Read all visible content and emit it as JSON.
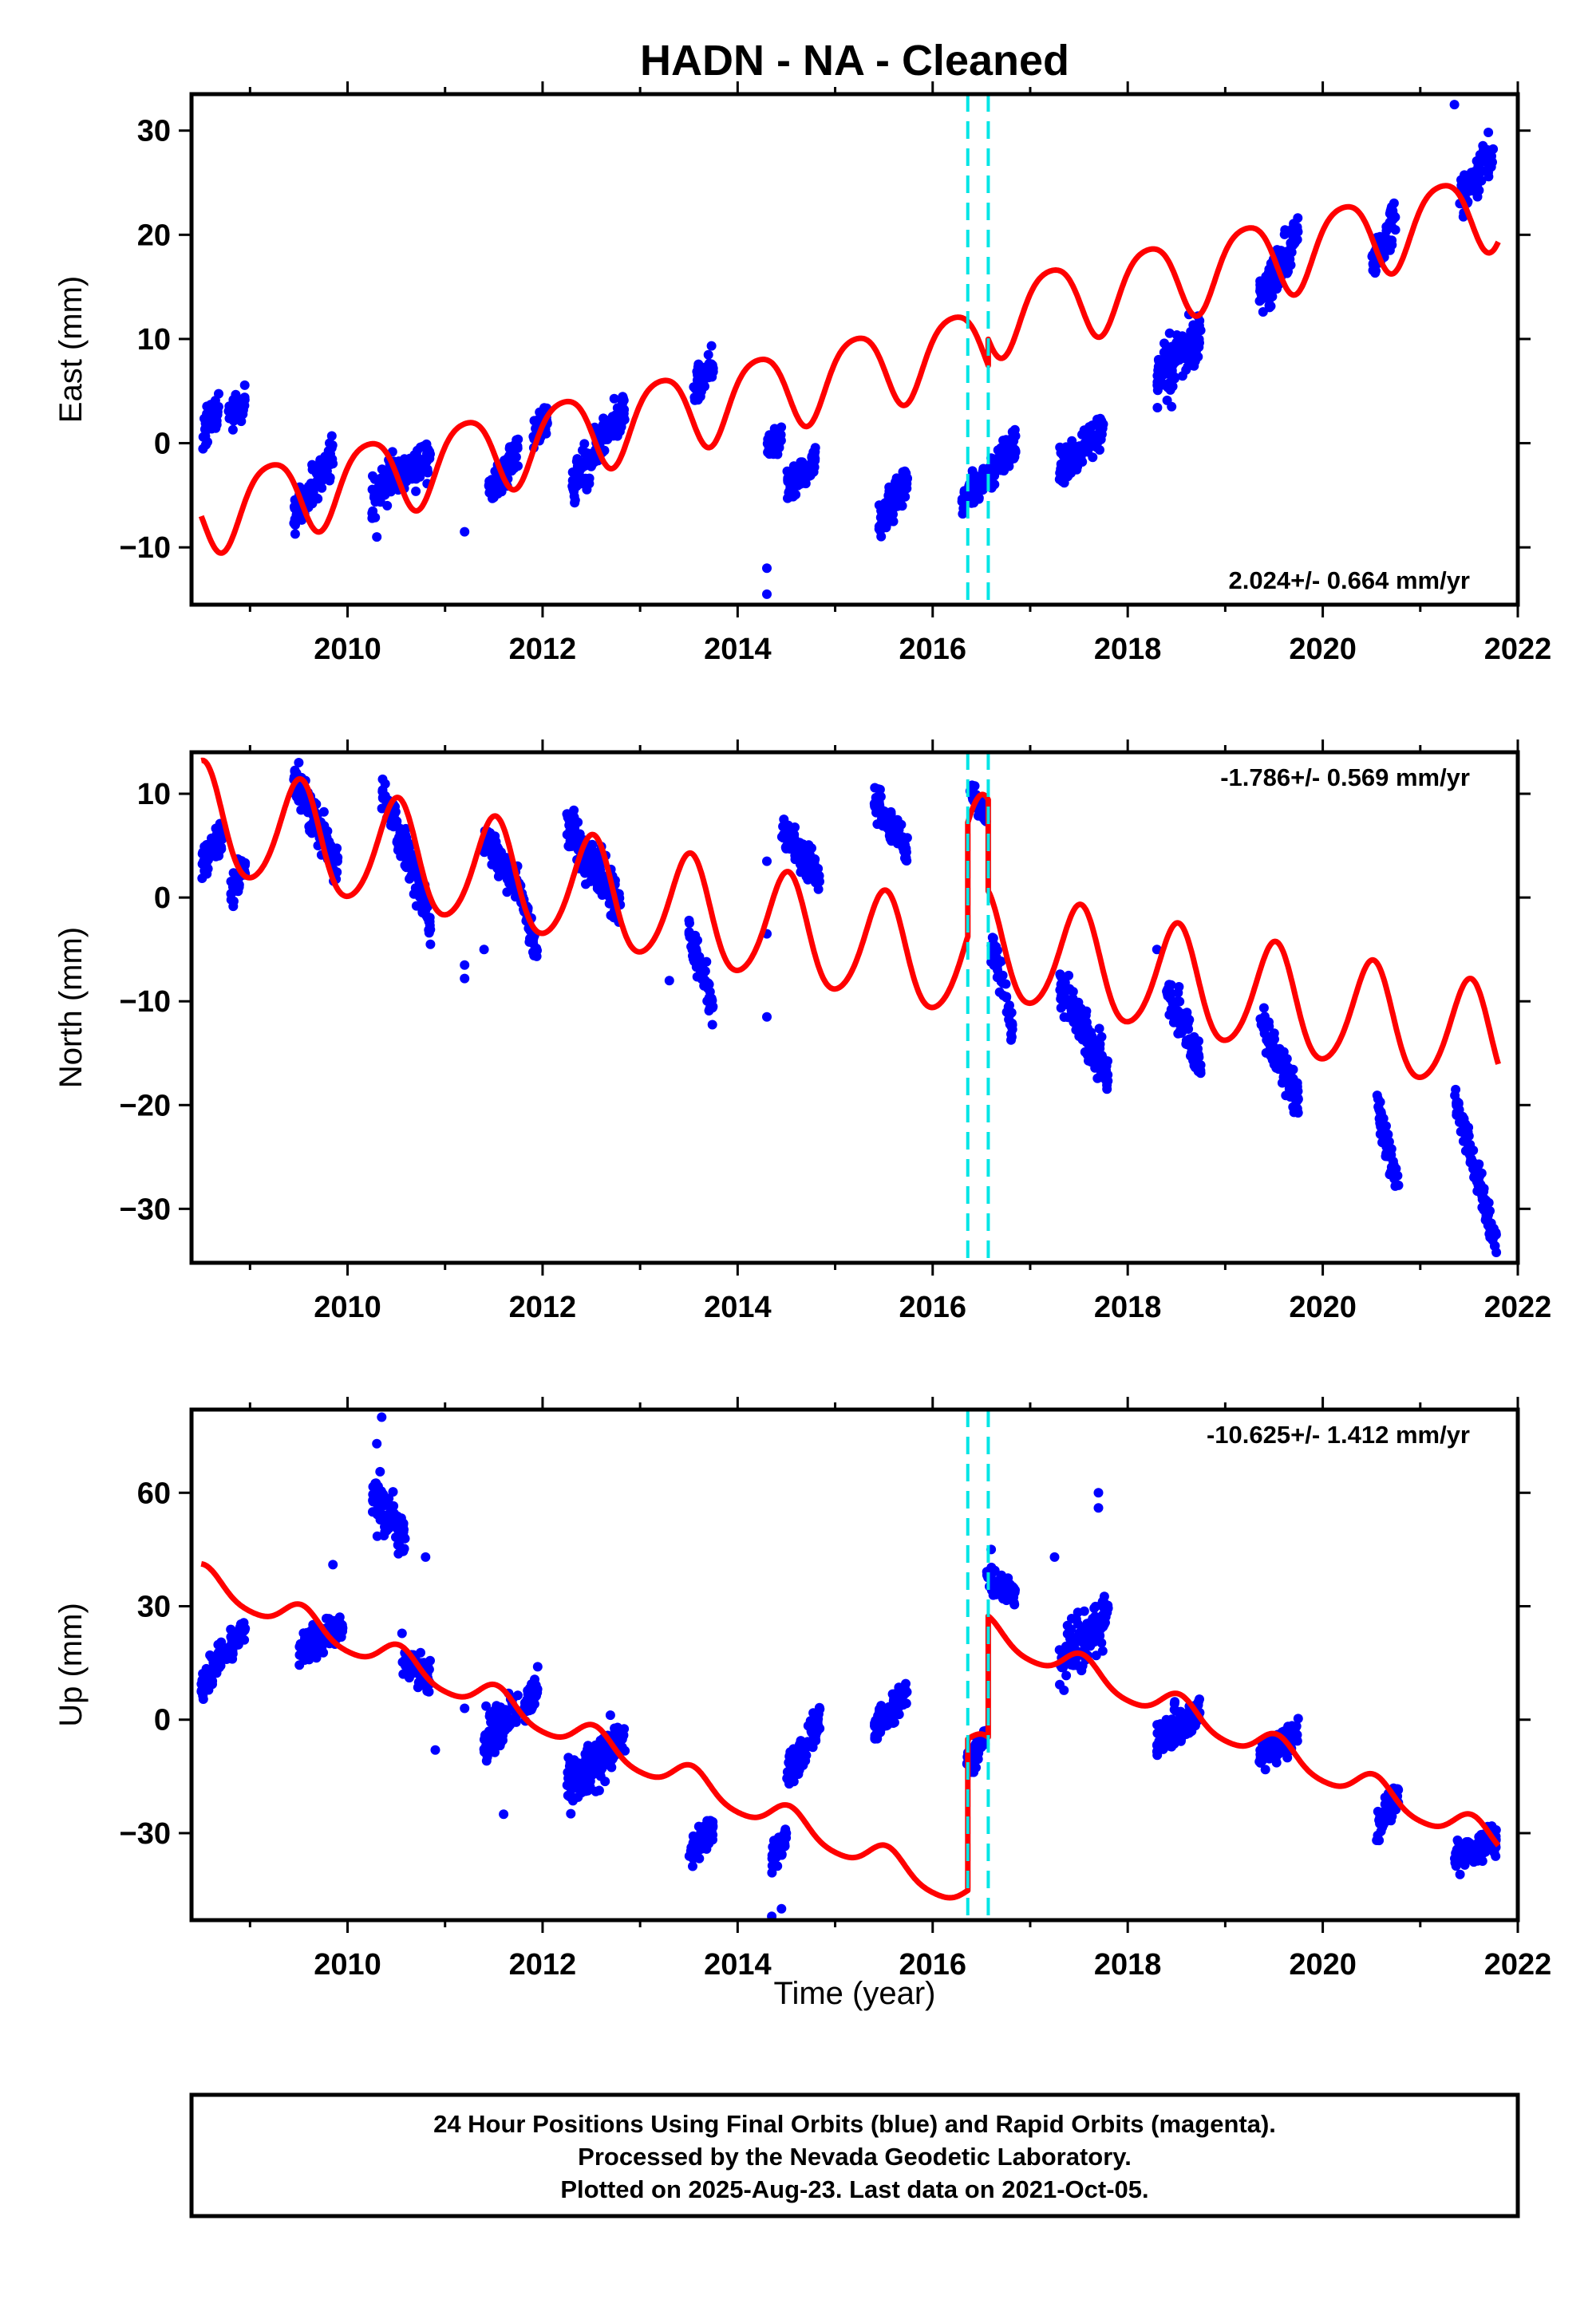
{
  "title": "HADN  - NA - Cleaned",
  "xlabel": "Time (year)",
  "footer": {
    "lines": [
      "24 Hour Positions Using Final Orbits (blue) and Rapid Orbits (magenta).",
      "Processed by the Nevada Geodetic Laboratory.",
      "Plotted on 2025-Aug-23. Last data on 2021-Oct-05."
    ]
  },
  "colors": {
    "data": "#0000ff",
    "model": "#ff0000",
    "offset": "#00e5e5",
    "frame": "#000000"
  },
  "offsets": [
    2016.36,
    2016.57
  ],
  "chart_data": [
    {
      "type": "scatter",
      "component": "east",
      "ylabel": "East (mm)",
      "rate_text": "2.024+/- 0.664 mm/yr",
      "rate_position": "bottom-right",
      "xlim": [
        2008.4,
        2022.0
      ],
      "ylim": [
        -15.5,
        33.5
      ],
      "xticks": [
        2010,
        2012,
        2014,
        2016,
        2018,
        2020,
        2022
      ],
      "yticks": [
        -10,
        0,
        10,
        20,
        30
      ],
      "yticklabels": [
        "−10",
        "0",
        "10",
        "20",
        "30"
      ],
      "series": [
        {
          "kind": "points",
          "color": "#0000ff",
          "clusters": [
            {
              "x0": 2008.5,
              "x1": 2008.68,
              "y0": 0.5,
              "y1": 3.5,
              "s": 1.3
            },
            {
              "x0": 2008.78,
              "x1": 2008.95,
              "y0": 2.5,
              "y1": 4.0,
              "s": 1.0
            },
            {
              "x0": 2009.45,
              "x1": 2009.85,
              "y0": -7.0,
              "y1": -1.0,
              "s": 1.3
            },
            {
              "x0": 2010.25,
              "x1": 2010.85,
              "y0": -5.0,
              "y1": -1.0,
              "s": 1.5
            },
            {
              "x0": 2011.45,
              "x1": 2011.75,
              "y0": -4.5,
              "y1": -1.0,
              "s": 1.2
            },
            {
              "x0": 2011.9,
              "x1": 2012.05,
              "y0": 0.5,
              "y1": 2.5,
              "s": 1.0
            },
            {
              "x0": 2012.3,
              "x1": 2012.85,
              "y0": -4.5,
              "y1": 3.5,
              "s": 1.5
            },
            {
              "x0": 2013.55,
              "x1": 2013.75,
              "y0": 5.0,
              "y1": 8.0,
              "s": 1.2
            },
            {
              "x0": 2014.3,
              "x1": 2014.45,
              "y0": -0.5,
              "y1": 0.5,
              "s": 0.8
            },
            {
              "x0": 2014.5,
              "x1": 2014.8,
              "y0": -4.5,
              "y1": -1.5,
              "s": 1.0
            },
            {
              "x0": 2015.45,
              "x1": 2015.75,
              "y0": -7.5,
              "y1": -3.5,
              "s": 1.2
            },
            {
              "x0": 2016.3,
              "x1": 2016.85,
              "y0": -5.5,
              "y1": 0.0,
              "s": 1.3
            },
            {
              "x0": 2017.3,
              "x1": 2017.75,
              "y0": -2.5,
              "y1": 1.5,
              "s": 1.3
            },
            {
              "x0": 2018.3,
              "x1": 2018.75,
              "y0": 6.0,
              "y1": 10.5,
              "s": 1.6
            },
            {
              "x0": 2019.35,
              "x1": 2019.75,
              "y0": 14.0,
              "y1": 20.0,
              "s": 1.5
            },
            {
              "x0": 2020.5,
              "x1": 2020.75,
              "y0": 17.0,
              "y1": 22.0,
              "s": 1.4
            },
            {
              "x0": 2021.4,
              "x1": 2021.75,
              "y0": 23.0,
              "y1": 28.0,
              "s": 1.5
            }
          ],
          "singles": [
            [
              2014.3,
              -12.0
            ],
            [
              2014.3,
              -14.5
            ],
            [
              2011.2,
              -8.5
            ],
            [
              2021.35,
              32.5
            ],
            [
              2010.3,
              -9.0
            ],
            [
              2018.45,
              3.5
            ]
          ]
        },
        {
          "kind": "model",
          "color": "#ff0000",
          "segments": [
            [
              2008.5,
              2016.36
            ],
            [
              2016.36,
              2016.57
            ],
            [
              2016.57,
              2021.8
            ]
          ],
          "base_year": 2008.5,
          "intercept": -6.7,
          "rate": 2.024,
          "annual_sin": -3.6,
          "annual_cos": -0.8,
          "semi_sin": -0.3,
          "semi_cos": 0.5,
          "segment_offsets": [
            0.0,
            0.0,
            2.5
          ]
        }
      ]
    },
    {
      "type": "scatter",
      "component": "north",
      "ylabel": "North (mm)",
      "rate_text": "-1.786+/- 0.569 mm/yr",
      "rate_position": "top-right",
      "xlim": [
        2008.4,
        2022.0
      ],
      "ylim": [
        -35.2,
        14.0
      ],
      "xticks": [
        2010,
        2012,
        2014,
        2016,
        2018,
        2020,
        2022
      ],
      "yticks": [
        -30,
        -20,
        -10,
        0,
        10
      ],
      "yticklabels": [
        "−30",
        "−20",
        "−10",
        "0",
        "10"
      ],
      "series": [
        {
          "kind": "points",
          "color": "#0000ff",
          "clusters": [
            {
              "x0": 2008.5,
              "x1": 2008.72,
              "y0": 3.0,
              "y1": 6.0,
              "s": 1.2
            },
            {
              "x0": 2008.8,
              "x1": 2008.95,
              "y0": 0.5,
              "y1": 3.0,
              "s": 1.0
            },
            {
              "x0": 2009.45,
              "x1": 2009.9,
              "y0": 11.5,
              "y1": 3.0,
              "s": 1.3
            },
            {
              "x0": 2010.35,
              "x1": 2010.85,
              "y0": 10.5,
              "y1": -2.0,
              "s": 1.5
            },
            {
              "x0": 2011.4,
              "x1": 2011.75,
              "y0": 6.0,
              "y1": 1.0,
              "s": 1.2
            },
            {
              "x0": 2011.75,
              "x1": 2011.95,
              "y0": 1.0,
              "y1": -5.5,
              "s": 1.0
            },
            {
              "x0": 2012.25,
              "x1": 2012.8,
              "y0": 7.0,
              "y1": -1.0,
              "s": 1.6
            },
            {
              "x0": 2013.5,
              "x1": 2013.75,
              "y0": -3.0,
              "y1": -11.0,
              "s": 1.3
            },
            {
              "x0": 2014.45,
              "x1": 2014.85,
              "y0": 6.5,
              "y1": 2.0,
              "s": 1.2
            },
            {
              "x0": 2015.4,
              "x1": 2015.75,
              "y0": 9.5,
              "y1": 4.0,
              "s": 1.2
            },
            {
              "x0": 2016.38,
              "x1": 2016.55,
              "y0": 10.5,
              "y1": 8.0,
              "s": 1.0
            },
            {
              "x0": 2016.6,
              "x1": 2016.82,
              "y0": -4.5,
              "y1": -12.5,
              "s": 1.2
            },
            {
              "x0": 2017.3,
              "x1": 2017.8,
              "y0": -8.5,
              "y1": -17.0,
              "s": 1.5
            },
            {
              "x0": 2018.4,
              "x1": 2018.75,
              "y0": -9.0,
              "y1": -16.0,
              "s": 1.4
            },
            {
              "x0": 2019.35,
              "x1": 2019.75,
              "y0": -11.5,
              "y1": -19.5,
              "s": 1.3
            },
            {
              "x0": 2020.55,
              "x1": 2020.78,
              "y0": -20.0,
              "y1": -27.5,
              "s": 1.2
            },
            {
              "x0": 2021.35,
              "x1": 2021.78,
              "y0": -19.0,
              "y1": -33.5,
              "s": 1.2
            }
          ],
          "singles": [
            [
              2010.85,
              -4.5
            ],
            [
              2011.2,
              -6.5
            ],
            [
              2011.2,
              -7.8
            ],
            [
              2013.3,
              -8.0
            ],
            [
              2014.3,
              -3.5
            ],
            [
              2014.3,
              -11.5
            ],
            [
              2014.3,
              3.5
            ],
            [
              2011.4,
              -5.0
            ],
            [
              2018.3,
              -5.0
            ],
            [
              2009.5,
              13.0
            ],
            [
              2021.78,
              -34.2
            ]
          ]
        },
        {
          "kind": "model",
          "color": "#ff0000",
          "segments": [
            [
              2008.5,
              2016.36
            ],
            [
              2016.36,
              2016.57
            ],
            [
              2016.57,
              2021.8
            ]
          ],
          "base_year": 2008.5,
          "intercept": 7.5,
          "rate": -1.786,
          "annual_sin": 0.2,
          "annual_cos": 5.2,
          "semi_sin": 0.3,
          "semi_cos": 0.5,
          "segment_offsets": [
            0.0,
            11.0,
            2.2
          ]
        }
      ]
    },
    {
      "type": "scatter",
      "component": "up",
      "ylabel": "Up (mm)",
      "rate_text": "-10.625+/- 1.412 mm/yr",
      "rate_position": "top-right",
      "xlim": [
        2008.4,
        2022.0
      ],
      "ylim": [
        -53.0,
        82.0
      ],
      "xticks": [
        2010,
        2012,
        2014,
        2016,
        2018,
        2020,
        2022
      ],
      "yticks": [
        -30,
        0,
        30,
        60
      ],
      "yticklabels": [
        "−30",
        "0",
        "30",
        "60"
      ],
      "series": [
        {
          "kind": "points",
          "color": "#0000ff",
          "clusters": [
            {
              "x0": 2008.5,
              "x1": 2008.72,
              "y0": 8.0,
              "y1": 18.0,
              "s": 3.0
            },
            {
              "x0": 2008.75,
              "x1": 2008.95,
              "y0": 18.0,
              "y1": 24.0,
              "s": 2.5
            },
            {
              "x0": 2009.5,
              "x1": 2009.95,
              "y0": 18.0,
              "y1": 25.0,
              "s": 3.0
            },
            {
              "x0": 2010.25,
              "x1": 2010.6,
              "y0": 60.0,
              "y1": 48.0,
              "s": 5.0
            },
            {
              "x0": 2010.55,
              "x1": 2010.85,
              "y0": 18.0,
              "y1": 10.0,
              "s": 3.5
            },
            {
              "x0": 2011.4,
              "x1": 2011.75,
              "y0": -5.0,
              "y1": 3.0,
              "s": 4.0
            },
            {
              "x0": 2011.8,
              "x1": 2011.95,
              "y0": 3.0,
              "y1": 8.0,
              "s": 3.0
            },
            {
              "x0": 2012.25,
              "x1": 2012.85,
              "y0": -18.0,
              "y1": -5.0,
              "s": 4.5
            },
            {
              "x0": 2013.5,
              "x1": 2013.75,
              "y0": -36.0,
              "y1": -28.0,
              "s": 3.0
            },
            {
              "x0": 2014.35,
              "x1": 2014.5,
              "y0": -38.0,
              "y1": -30.0,
              "s": 3.0
            },
            {
              "x0": 2014.5,
              "x1": 2014.85,
              "y0": -15.0,
              "y1": 0.0,
              "s": 3.5
            },
            {
              "x0": 2015.4,
              "x1": 2015.75,
              "y0": -3.0,
              "y1": 8.0,
              "s": 3.0
            },
            {
              "x0": 2016.35,
              "x1": 2016.55,
              "y0": -12.0,
              "y1": -5.0,
              "s": 2.5
            },
            {
              "x0": 2016.55,
              "x1": 2016.85,
              "y0": 38.0,
              "y1": 32.0,
              "s": 3.0
            },
            {
              "x0": 2017.3,
              "x1": 2017.8,
              "y0": 15.0,
              "y1": 28.0,
              "s": 5.0
            },
            {
              "x0": 2018.3,
              "x1": 2018.75,
              "y0": -5.0,
              "y1": 2.0,
              "s": 3.5
            },
            {
              "x0": 2019.35,
              "x1": 2019.75,
              "y0": -10.0,
              "y1": -3.0,
              "s": 3.0
            },
            {
              "x0": 2020.55,
              "x1": 2020.78,
              "y0": -28.0,
              "y1": -20.0,
              "s": 3.0
            },
            {
              "x0": 2021.35,
              "x1": 2021.78,
              "y0": -36.0,
              "y1": -32.0,
              "s": 3.0
            }
          ],
          "singles": [
            [
              2010.35,
              80.0
            ],
            [
              2010.3,
              73.0
            ],
            [
              2014.35,
              -52.0
            ],
            [
              2014.45,
              -50.0
            ],
            [
              2017.7,
              60.0
            ],
            [
              2017.7,
              56.0
            ],
            [
              2016.6,
              45.0
            ],
            [
              2017.25,
              43.0
            ],
            [
              2011.6,
              -25.0
            ],
            [
              2010.9,
              -8.0
            ],
            [
              2011.2,
              3.0
            ],
            [
              2009.85,
              41.0
            ],
            [
              2010.8,
              43.0
            ],
            [
              2011.95,
              14.0
            ]
          ]
        },
        {
          "kind": "model",
          "color": "#ff0000",
          "segments": [
            [
              2008.5,
              2016.36
            ],
            [
              2016.36,
              2016.57
            ],
            [
              2016.57,
              2021.8
            ]
          ],
          "base_year": 2008.5,
          "intercept": 37.0,
          "rate": -10.625,
          "annual_sin": 0.8,
          "annual_cos": 3.6,
          "semi_sin": 0.2,
          "semi_cos": 0.6,
          "segment_offsets": [
            0.0,
            40.0,
            72.0
          ]
        }
      ]
    }
  ]
}
